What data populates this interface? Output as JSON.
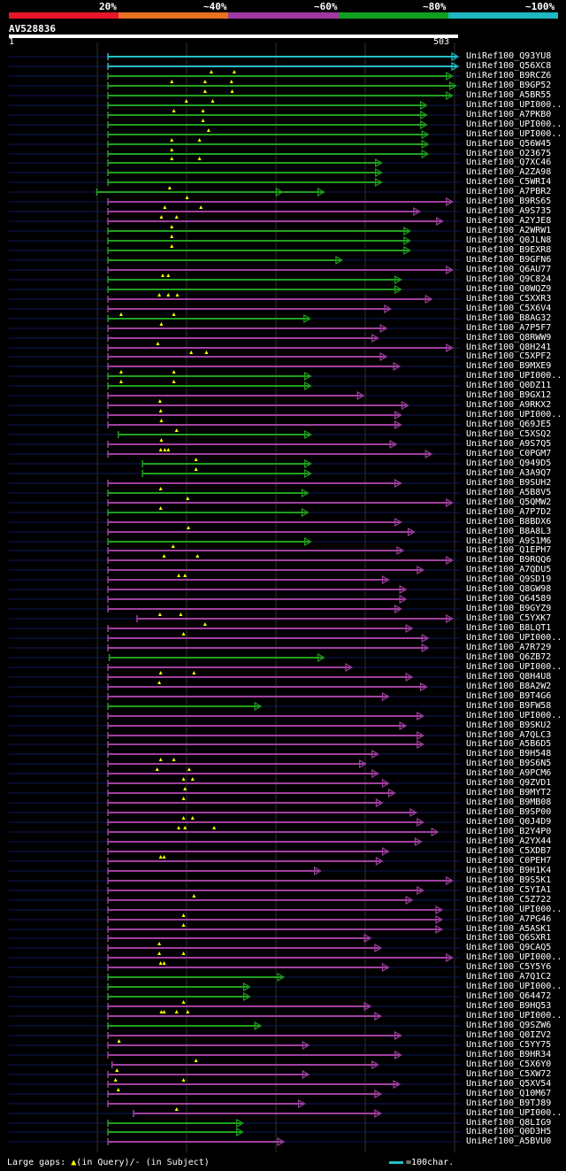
{
  "query_id": "AV528836",
  "query_start": "1",
  "query_end": "503",
  "legend": {
    "labels": [
      "20%",
      "~40%",
      "~60%",
      "~80%",
      "~100%"
    ],
    "colors": [
      "#e8162a",
      "#e87020",
      "#a038a0",
      "#10a020",
      "#20b8c0"
    ]
  },
  "footer": {
    "gaps_label": "Large gaps:",
    "query_gap": "(in Query)/",
    "subject_gap": "- (in Subject)",
    "scale_label": "=100char."
  },
  "hits": [
    {
      "id": "UniRef100_Q93YU8",
      "s": 1,
      "e": 503,
      "c": "cyan",
      "g": []
    },
    {
      "id": "UniRef100_Q56XC8",
      "s": 1,
      "e": 503,
      "c": "cyan",
      "g": []
    },
    {
      "id": "UniRef100_B9RCZ6",
      "s": 1,
      "e": 495,
      "c": "green",
      "g": [
        150,
        183
      ]
    },
    {
      "id": "UniRef100_B9GP52",
      "s": 1,
      "e": 500,
      "c": "green",
      "g": [
        93,
        141,
        179
      ]
    },
    {
      "id": "UniRef100_A5BR55",
      "s": 1,
      "e": 495,
      "c": "green",
      "g": [
        141,
        180
      ]
    },
    {
      "id": "UniRef100_UPI000..",
      "s": 1,
      "e": 458,
      "c": "green",
      "g": [
        114,
        152
      ]
    },
    {
      "id": "UniRef100_A7PKB0",
      "s": 1,
      "e": 458,
      "c": "green",
      "g": [
        96,
        138
      ]
    },
    {
      "id": "UniRef100_UPI000..",
      "s": 1,
      "e": 458,
      "c": "green",
      "g": [
        138
      ]
    },
    {
      "id": "UniRef100_UPI000..",
      "s": 1,
      "e": 460,
      "c": "green",
      "g": [
        146
      ]
    },
    {
      "id": "UniRef100_Q56W45",
      "s": 1,
      "e": 460,
      "c": "green",
      "g": [
        93,
        133
      ]
    },
    {
      "id": "UniRef100_O23675",
      "s": 1,
      "e": 460,
      "c": "green",
      "g": [
        93
      ]
    },
    {
      "id": "UniRef100_Q7XC46",
      "s": 1,
      "e": 393,
      "c": "green",
      "g": [
        93,
        133
      ]
    },
    {
      "id": "UniRef100_A2ZA98",
      "s": 1,
      "e": 393,
      "c": "green",
      "g": []
    },
    {
      "id": "UniRef100_C5WRI4",
      "s": 1,
      "e": 393,
      "c": "green",
      "g": []
    },
    {
      "id": "UniRef100_A7PBR2",
      "s": -15,
      "e": 310,
      "c": "green",
      "g": [
        90
      ],
      "k": [
        250
      ]
    },
    {
      "id": "UniRef100_B9RS65",
      "s": 1,
      "e": 495,
      "c": "magenta",
      "g": [
        115
      ]
    },
    {
      "id": "UniRef100_A9S735",
      "s": 1,
      "e": 448,
      "c": "magenta",
      "g": [
        83,
        135
      ]
    },
    {
      "id": "UniRef100_A2YJE8",
      "s": 1,
      "e": 481,
      "c": "magenta",
      "g": [
        78,
        100
      ]
    },
    {
      "id": "UniRef100_A2WRW1",
      "s": 1,
      "e": 434,
      "c": "green",
      "g": [
        93
      ]
    },
    {
      "id": "UniRef100_Q0JLN8",
      "s": 1,
      "e": 434,
      "c": "green",
      "g": [
        93
      ]
    },
    {
      "id": "UniRef100_B9EXR8",
      "s": 1,
      "e": 434,
      "c": "green",
      "g": [
        93
      ]
    },
    {
      "id": "UniRef100_B9GFN6",
      "s": 1,
      "e": 336,
      "c": "green",
      "g": []
    },
    {
      "id": "UniRef100_Q6AU77",
      "s": 1,
      "e": 495,
      "c": "magenta",
      "g": []
    },
    {
      "id": "UniRef100_Q9C824",
      "s": 1,
      "e": 421,
      "c": "green",
      "g": [
        80,
        88
      ]
    },
    {
      "id": "UniRef100_Q0WQZ9",
      "s": 1,
      "e": 421,
      "c": "green",
      "g": []
    },
    {
      "id": "UniRef100_C5XXR3",
      "s": 1,
      "e": 465,
      "c": "magenta",
      "g": [
        75,
        88,
        101
      ]
    },
    {
      "id": "UniRef100_C5X6V4",
      "s": 1,
      "e": 406,
      "c": "magenta",
      "g": []
    },
    {
      "id": "UniRef100_B8AG32",
      "s": 1,
      "e": 290,
      "c": "green",
      "g": [
        20,
        96
      ]
    },
    {
      "id": "UniRef100_A7P5F7",
      "s": 1,
      "e": 400,
      "c": "magenta",
      "g": [
        78
      ]
    },
    {
      "id": "UniRef100_Q8RWW9",
      "s": 1,
      "e": 388,
      "c": "magenta",
      "g": []
    },
    {
      "id": "UniRef100_Q8H241",
      "s": 1,
      "e": 495,
      "c": "magenta",
      "g": [
        73
      ]
    },
    {
      "id": "UniRef100_C5XPF2",
      "s": 1,
      "e": 400,
      "c": "magenta",
      "g": [
        121,
        143
      ]
    },
    {
      "id": "UniRef100_B9MXE9",
      "s": 1,
      "e": 419,
      "c": "magenta",
      "g": []
    },
    {
      "id": "UniRef100_UPI000..",
      "s": 1,
      "e": 291,
      "c": "green",
      "g": [
        20,
        96
      ]
    },
    {
      "id": "UniRef100_Q0DZ11",
      "s": 1,
      "e": 291,
      "c": "green",
      "g": [
        20,
        96
      ]
    },
    {
      "id": "UniRef100_B9GX12",
      "s": 1,
      "e": 367,
      "c": "magenta",
      "g": []
    },
    {
      "id": "UniRef100_A9RKX2",
      "s": 1,
      "e": 431,
      "c": "magenta",
      "g": [
        76
      ]
    },
    {
      "id": "UniRef100_UPI000..",
      "s": 1,
      "e": 421,
      "c": "magenta",
      "g": [
        77
      ]
    },
    {
      "id": "UniRef100_Q69JE5",
      "s": 1,
      "e": 421,
      "c": "magenta",
      "g": [
        78
      ]
    },
    {
      "id": "UniRef100_C5XSQ2",
      "s": 16,
      "e": 291,
      "c": "green",
      "g": [
        100
      ]
    },
    {
      "id": "UniRef100_A9S7Q5",
      "s": 1,
      "e": 414,
      "c": "magenta",
      "g": [
        78
      ]
    },
    {
      "id": "UniRef100_C0PGM7",
      "s": 1,
      "e": 465,
      "c": "magenta",
      "g": [
        77,
        83,
        88
      ]
    },
    {
      "id": "UniRef100_Q949D5",
      "s": 51,
      "e": 291,
      "c": "green",
      "g": [
        128
      ]
    },
    {
      "id": "UniRef100_A3A9Q7",
      "s": 51,
      "e": 291,
      "c": "green",
      "g": [
        128
      ]
    },
    {
      "id": "UniRef100_B9SUH2",
      "s": 1,
      "e": 421,
      "c": "magenta",
      "g": []
    },
    {
      "id": "UniRef100_A5B8V5",
      "s": 1,
      "e": 287,
      "c": "green",
      "g": [
        77
      ]
    },
    {
      "id": "UniRef100_Q5QMW2",
      "s": 1,
      "e": 495,
      "c": "magenta",
      "g": [
        116
      ]
    },
    {
      "id": "UniRef100_A7P7D2",
      "s": 1,
      "e": 287,
      "c": "green",
      "g": [
        77
      ]
    },
    {
      "id": "UniRef100_B8BDX6",
      "s": 1,
      "e": 421,
      "c": "magenta",
      "g": []
    },
    {
      "id": "UniRef100_B8A8L3",
      "s": 1,
      "e": 440,
      "c": "magenta",
      "g": [
        117
      ]
    },
    {
      "id": "UniRef100_A9S1M6",
      "s": 1,
      "e": 291,
      "c": "green",
      "g": []
    },
    {
      "id": "UniRef100_Q1EPH7",
      "s": 1,
      "e": 424,
      "c": "magenta",
      "g": [
        95
      ]
    },
    {
      "id": "UniRef100_B9RQQ6",
      "s": 1,
      "e": 495,
      "c": "magenta",
      "g": [
        82,
        130
      ]
    },
    {
      "id": "UniRef100_A7QDU5",
      "s": 1,
      "e": 453,
      "c": "magenta",
      "g": []
    },
    {
      "id": "UniRef100_Q9SD19",
      "s": 1,
      "e": 403,
      "c": "magenta",
      "g": [
        103,
        112
      ]
    },
    {
      "id": "UniRef100_Q8GW98",
      "s": 1,
      "e": 428,
      "c": "magenta",
      "g": []
    },
    {
      "id": "UniRef100_Q64589",
      "s": 1,
      "e": 428,
      "c": "magenta",
      "g": []
    },
    {
      "id": "UniRef100_B9GYZ9",
      "s": 1,
      "e": 421,
      "c": "magenta",
      "g": []
    },
    {
      "id": "UniRef100_C5YXK7",
      "s": 43,
      "e": 495,
      "c": "magenta",
      "g": [
        76,
        106
      ]
    },
    {
      "id": "UniRef100_B8LQT1",
      "s": 1,
      "e": 437,
      "c": "magenta",
      "g": [
        141
      ]
    },
    {
      "id": "UniRef100_UPI000..",
      "s": 1,
      "e": 460,
      "c": "magenta",
      "g": [
        110
      ]
    },
    {
      "id": "UniRef100_A7R729",
      "s": 1,
      "e": 460,
      "c": "magenta",
      "g": []
    },
    {
      "id": "UniRef100_Q6ZB72",
      "s": 3,
      "e": 310,
      "c": "green",
      "g": []
    },
    {
      "id": "UniRef100_UPI000..",
      "s": 1,
      "e": 350,
      "c": "magenta",
      "g": []
    },
    {
      "id": "UniRef100_Q8H4U8",
      "s": 1,
      "e": 437,
      "c": "magenta",
      "g": [
        77,
        125
      ]
    },
    {
      "id": "UniRef100_B8A2W2",
      "s": 1,
      "e": 458,
      "c": "magenta",
      "g": [
        75
      ]
    },
    {
      "id": "UniRef100_B9T4G6",
      "s": 1,
      "e": 403,
      "c": "magenta",
      "g": []
    },
    {
      "id": "UniRef100_B9FW58",
      "s": 1,
      "e": 219,
      "c": "green",
      "g": []
    },
    {
      "id": "UniRef100_UPI000..",
      "s": 1,
      "e": 453,
      "c": "magenta",
      "g": []
    },
    {
      "id": "UniRef100_B9SKU2",
      "s": 1,
      "e": 428,
      "c": "magenta",
      "g": []
    },
    {
      "id": "UniRef100_A7QLC3",
      "s": 1,
      "e": 453,
      "c": "magenta",
      "g": []
    },
    {
      "id": "UniRef100_A5B6D5",
      "s": 1,
      "e": 453,
      "c": "magenta",
      "g": []
    },
    {
      "id": "UniRef100_B9H548",
      "s": 1,
      "e": 388,
      "c": "magenta",
      "g": []
    },
    {
      "id": "UniRef100_B9S6N5",
      "s": 1,
      "e": 370,
      "c": "magenta",
      "g": [
        77,
        96
      ]
    },
    {
      "id": "UniRef100_A9PCM6",
      "s": 1,
      "e": 388,
      "c": "magenta",
      "g": [
        72,
        118
      ]
    },
    {
      "id": "UniRef100_Q9ZVD1",
      "s": 1,
      "e": 403,
      "c": "magenta",
      "g": [
        110,
        123
      ]
    },
    {
      "id": "UniRef100_B9MYT2",
      "s": 1,
      "e": 412,
      "c": "magenta",
      "g": [
        112
      ]
    },
    {
      "id": "UniRef100_B9MB08",
      "s": 1,
      "e": 394,
      "c": "magenta",
      "g": [
        110
      ]
    },
    {
      "id": "UniRef100_B9SP00",
      "s": 1,
      "e": 443,
      "c": "magenta",
      "g": []
    },
    {
      "id": "UniRef100_Q0J4D9",
      "s": 1,
      "e": 453,
      "c": "magenta",
      "g": [
        110,
        123
      ]
    },
    {
      "id": "UniRef100_B2Y4P0",
      "s": 1,
      "e": 474,
      "c": "magenta",
      "g": [
        103,
        112,
        154
      ]
    },
    {
      "id": "UniRef100_A2YX44",
      "s": 1,
      "e": 450,
      "c": "magenta",
      "g": []
    },
    {
      "id": "UniRef100_C5XDB7",
      "s": 1,
      "e": 403,
      "c": "magenta",
      "g": []
    },
    {
      "id": "UniRef100_C0PEH7",
      "s": 1,
      "e": 394,
      "c": "magenta",
      "g": [
        77,
        82
      ]
    },
    {
      "id": "UniRef100_B9H1K4",
      "s": 1,
      "e": 305,
      "c": "magenta",
      "g": []
    },
    {
      "id": "UniRef100_B9S5K1",
      "s": 1,
      "e": 495,
      "c": "magenta",
      "g": []
    },
    {
      "id": "UniRef100_C5YIA1",
      "s": 1,
      "e": 453,
      "c": "magenta",
      "g": []
    },
    {
      "id": "UniRef100_C5Z722",
      "s": 1,
      "e": 437,
      "c": "magenta",
      "g": [
        125
      ]
    },
    {
      "id": "UniRef100_UPI000..",
      "s": 1,
      "e": 480,
      "c": "magenta",
      "g": []
    },
    {
      "id": "UniRef100_A7PG46",
      "s": 1,
      "e": 480,
      "c": "magenta",
      "g": [
        110
      ]
    },
    {
      "id": "UniRef100_A5ASK1",
      "s": 1,
      "e": 480,
      "c": "magenta",
      "g": [
        110
      ]
    },
    {
      "id": "UniRef100_Q6SXR1",
      "s": 1,
      "e": 377,
      "c": "magenta",
      "g": []
    },
    {
      "id": "UniRef100_Q9CAQ5",
      "s": 1,
      "e": 392,
      "c": "magenta",
      "g": [
        75
      ]
    },
    {
      "id": "UniRef100_UPI000..",
      "s": 1,
      "e": 495,
      "c": "magenta",
      "g": [
        75,
        110
      ]
    },
    {
      "id": "UniRef100_C5Y5Y6",
      "s": 1,
      "e": 403,
      "c": "magenta",
      "g": [
        77,
        82
      ]
    },
    {
      "id": "UniRef100_A7Q1C2",
      "s": 1,
      "e": 252,
      "c": "green",
      "g": []
    },
    {
      "id": "UniRef100_UPI000..",
      "s": 1,
      "e": 203,
      "c": "green",
      "g": []
    },
    {
      "id": "UniRef100_Q64472",
      "s": 1,
      "e": 203,
      "c": "green",
      "g": []
    },
    {
      "id": "UniRef100_B9HQ53",
      "s": 1,
      "e": 377,
      "c": "magenta",
      "g": [
        110
      ]
    },
    {
      "id": "UniRef100_UPI000..",
      "s": 1,
      "e": 392,
      "c": "magenta",
      "g": [
        78,
        82,
        100,
        116
      ]
    },
    {
      "id": "UniRef100_Q9SZW6",
      "s": 1,
      "e": 219,
      "c": "green",
      "g": []
    },
    {
      "id": "UniRef100_Q0IZV2",
      "s": 1,
      "e": 421,
      "c": "magenta",
      "g": []
    },
    {
      "id": "UniRef100_C5YY75",
      "s": 1,
      "e": 288,
      "c": "magenta",
      "g": [
        17
      ]
    },
    {
      "id": "UniRef100_B9HR34",
      "s": 1,
      "e": 421,
      "c": "magenta",
      "g": []
    },
    {
      "id": "UniRef100_C5X6Y0",
      "s": 7,
      "e": 388,
      "c": "magenta",
      "g": [
        128
      ]
    },
    {
      "id": "UniRef100_C5XW72",
      "s": 1,
      "e": 288,
      "c": "magenta",
      "g": [
        14
      ]
    },
    {
      "id": "UniRef100_Q5XV54",
      "s": 1,
      "e": 419,
      "c": "magenta",
      "g": [
        12,
        110
      ]
    },
    {
      "id": "UniRef100_Q10M67",
      "s": 1,
      "e": 392,
      "c": "magenta",
      "g": [
        16
      ]
    },
    {
      "id": "UniRef100_B9TJ89",
      "s": 1,
      "e": 282,
      "c": "magenta",
      "g": []
    },
    {
      "id": "UniRef100_UPI000..",
      "s": 38,
      "e": 392,
      "c": "magenta",
      "g": [
        100
      ]
    },
    {
      "id": "UniRef100_Q8LIG9",
      "s": 1,
      "e": 193,
      "c": "green",
      "g": []
    },
    {
      "id": "UniRef100_Q0D3H5",
      "s": 1,
      "e": 193,
      "c": "green",
      "g": []
    },
    {
      "id": "UniRef100_A5BVU0",
      "s": 1,
      "e": 252,
      "c": "magenta",
      "g": []
    }
  ]
}
